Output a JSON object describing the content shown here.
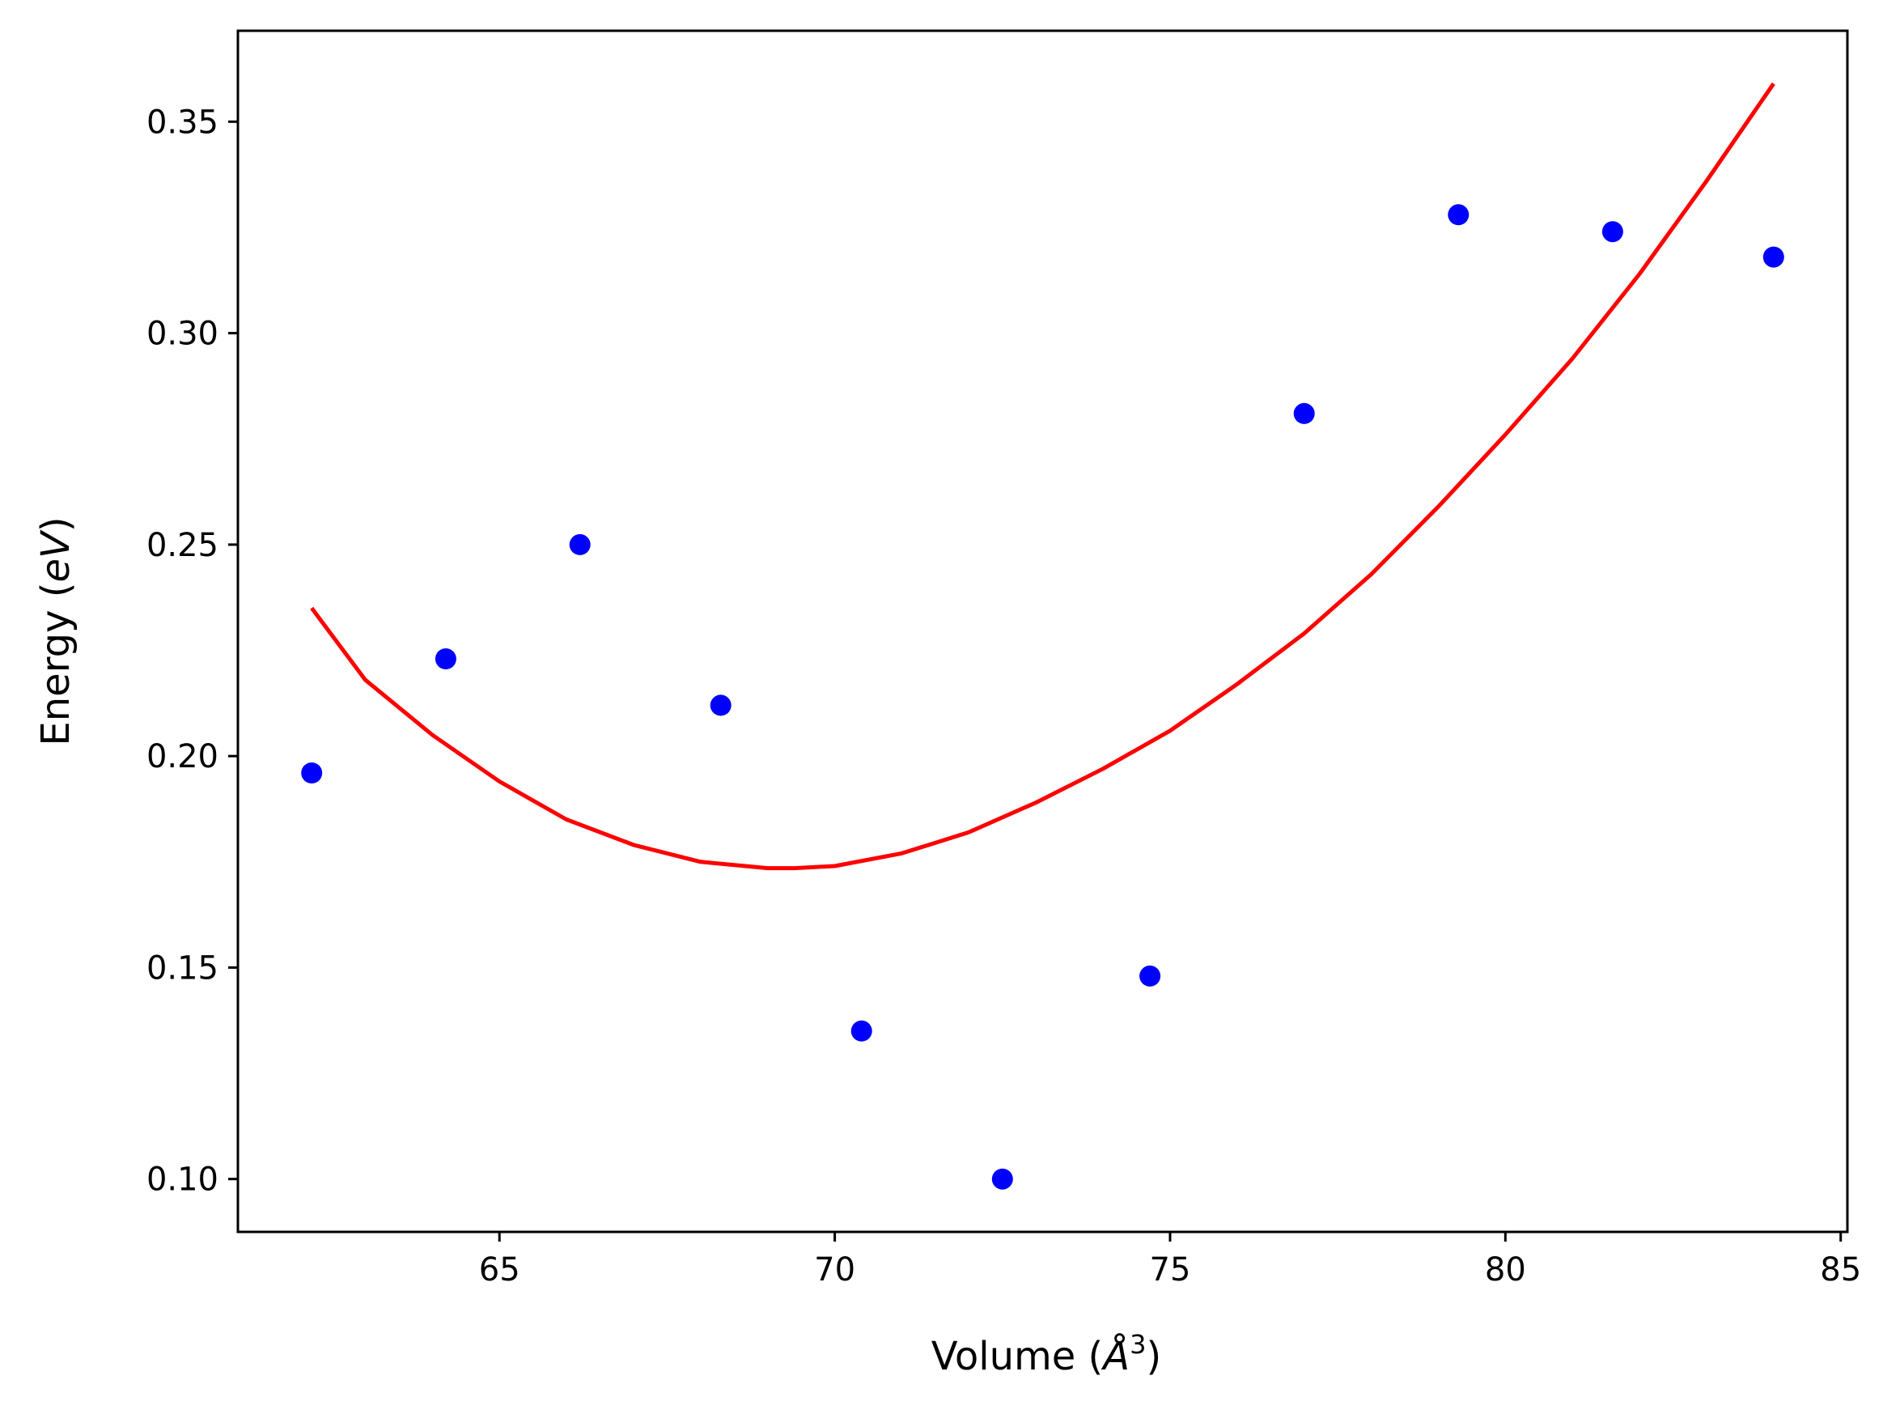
{
  "chart_data": {
    "type": "scatter",
    "title": "",
    "xlabel": "Volume",
    "xlabel_unit_base": "Å",
    "xlabel_unit_exp": "3",
    "ylabel": "Energy",
    "ylabel_unit": "eV",
    "xlim": [
      61.1,
      85.1
    ],
    "ylim": [
      0.0875,
      0.3715
    ],
    "xticks": [
      {
        "value": 65,
        "label": "65"
      },
      {
        "value": 70,
        "label": "70"
      },
      {
        "value": 75,
        "label": "75"
      },
      {
        "value": 80,
        "label": "80"
      },
      {
        "value": 85,
        "label": "85"
      }
    ],
    "yticks": [
      {
        "value": 0.1,
        "label": "0.10"
      },
      {
        "value": 0.15,
        "label": "0.15"
      },
      {
        "value": 0.2,
        "label": "0.20"
      },
      {
        "value": 0.25,
        "label": "0.25"
      },
      {
        "value": 0.3,
        "label": "0.30"
      },
      {
        "value": 0.35,
        "label": "0.35"
      }
    ],
    "grid": false,
    "series": [
      {
        "kind": "scatter",
        "color": "#0000ff",
        "x": [
          62.2,
          64.2,
          66.2,
          68.3,
          70.4,
          72.5,
          74.7,
          77.0,
          79.3,
          81.6,
          84.0
        ],
        "y": [
          0.196,
          0.223,
          0.25,
          0.212,
          0.135,
          0.1,
          0.148,
          0.281,
          0.328,
          0.324,
          0.318
        ]
      },
      {
        "kind": "line",
        "color": "#ff0000",
        "x": [
          62.2,
          63.0,
          64.0,
          65.0,
          66.0,
          67.0,
          68.0,
          69.0,
          69.4,
          70.0,
          71.0,
          72.0,
          73.0,
          74.0,
          75.0,
          76.0,
          77.0,
          78.0,
          79.0,
          80.0,
          81.0,
          82.0,
          83.0,
          84.0
        ],
        "y": [
          0.235,
          0.218,
          0.205,
          0.194,
          0.185,
          0.179,
          0.175,
          0.1735,
          0.1735,
          0.174,
          0.177,
          0.182,
          0.189,
          0.197,
          0.206,
          0.217,
          0.229,
          0.243,
          0.259,
          0.276,
          0.294,
          0.314,
          0.336,
          0.359
        ]
      }
    ]
  }
}
